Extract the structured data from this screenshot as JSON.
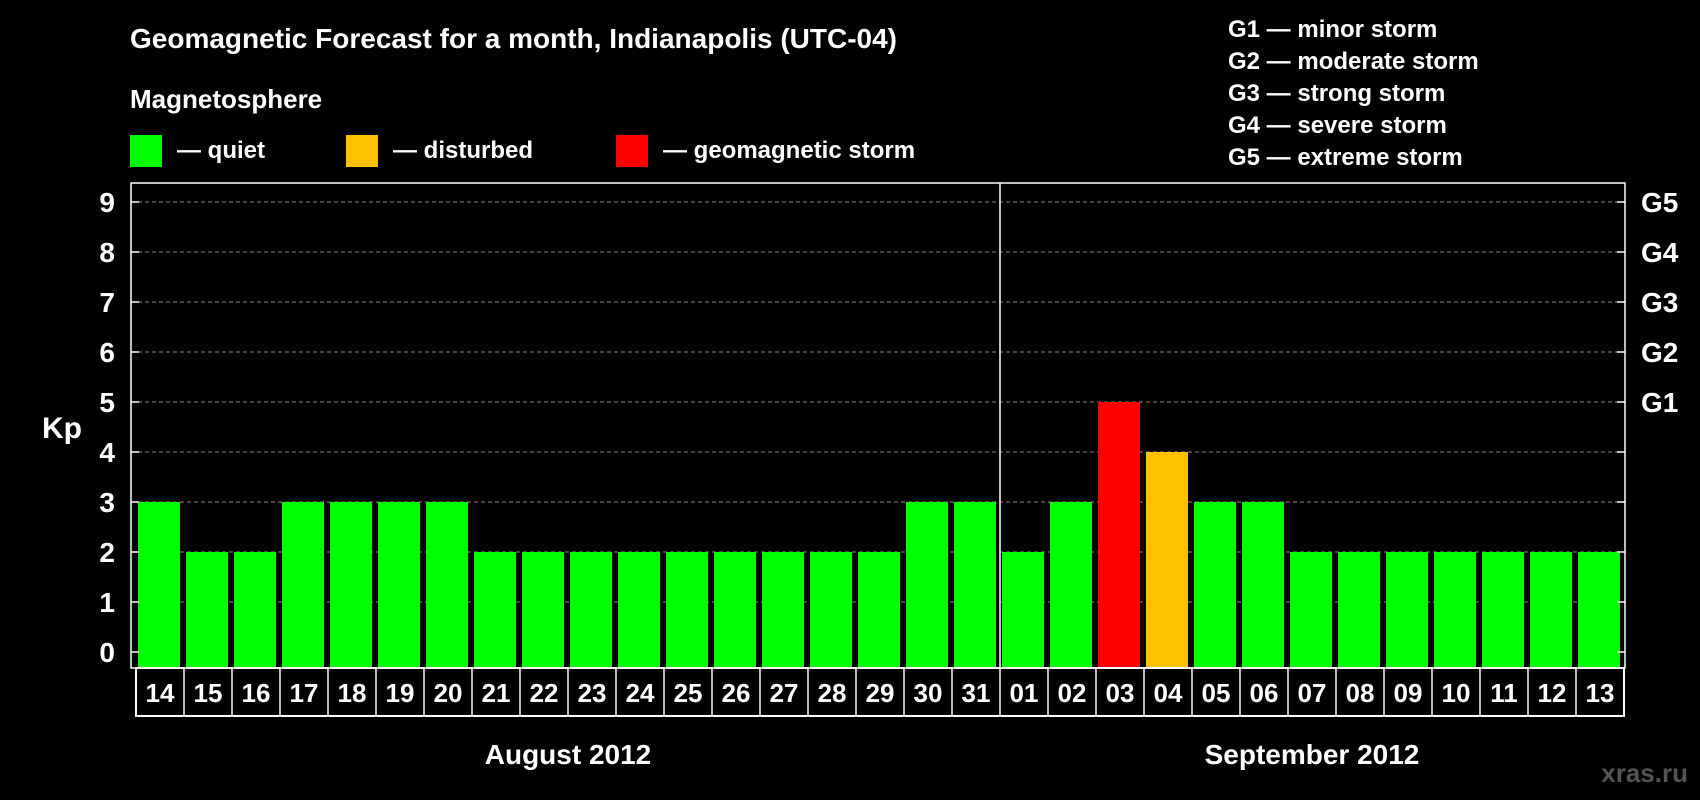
{
  "header": {
    "title": "Geomagnetic Forecast for a month, Indianapolis (UTC-04)",
    "subtitle": "Magnetosphere"
  },
  "legend": {
    "items": [
      {
        "label": "— quiet",
        "color": "#00ff00"
      },
      {
        "label": "— disturbed",
        "color": "#ffc000"
      },
      {
        "label": "— geomagnetic storm",
        "color": "#ff0000"
      }
    ]
  },
  "storm_scale": [
    "G1 — minor storm",
    "G2 — moderate storm",
    "G3 — strong storm",
    "G4 — severe storm",
    "G5 — extreme storm"
  ],
  "watermark": "xras.ru",
  "chart_data": {
    "type": "bar",
    "title": "Geomagnetic Forecast for a month, Indianapolis (UTC-04)",
    "ylabel": "Kp",
    "ylim": [
      0,
      9
    ],
    "yticks": [
      "0",
      "1",
      "2",
      "3",
      "4",
      "5",
      "6",
      "7",
      "8",
      "9"
    ],
    "right_axis_labels": [
      {
        "kp": 5,
        "label": "G1"
      },
      {
        "kp": 6,
        "label": "G2"
      },
      {
        "kp": 7,
        "label": "G3"
      },
      {
        "kp": 8,
        "label": "G4"
      },
      {
        "kp": 9,
        "label": "G5"
      }
    ],
    "grid": true,
    "months": [
      {
        "label": "August 2012",
        "start_index": 0,
        "count": 18
      },
      {
        "label": "September 2012",
        "start_index": 18,
        "count": 13
      }
    ],
    "categories": [
      "14",
      "15",
      "16",
      "17",
      "18",
      "19",
      "20",
      "21",
      "22",
      "23",
      "24",
      "25",
      "26",
      "27",
      "28",
      "29",
      "30",
      "31",
      "01",
      "02",
      "03",
      "04",
      "05",
      "06",
      "07",
      "08",
      "09",
      "10",
      "11",
      "12",
      "13"
    ],
    "values": [
      3,
      2,
      2,
      3,
      3,
      3,
      3,
      2,
      2,
      2,
      2,
      2,
      2,
      2,
      2,
      2,
      3,
      3,
      2,
      3,
      5,
      4,
      3,
      3,
      2,
      2,
      2,
      2,
      2,
      2,
      2
    ],
    "colors": {
      "quiet": "#00ff00",
      "disturbed": "#ffc000",
      "storm": "#ff0000"
    },
    "thresholds": {
      "disturbed": 4,
      "storm": 5
    }
  }
}
